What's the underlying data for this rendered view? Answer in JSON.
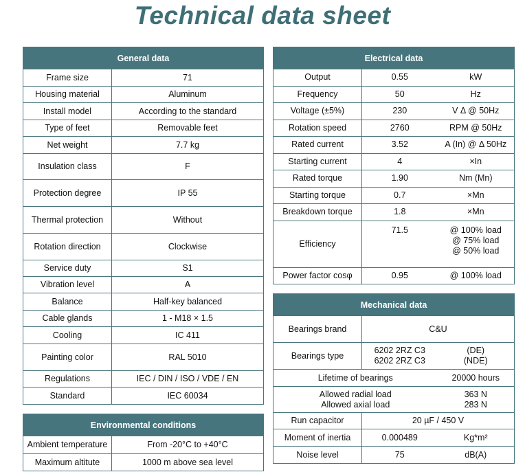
{
  "title": "Technical data sheet",
  "accent_color": "#47757e",
  "general": {
    "header": "General data",
    "rows": [
      [
        "Frame size",
        "71"
      ],
      [
        "Housing material",
        "Aluminum"
      ],
      [
        "Install model",
        "According to the standard"
      ],
      [
        "Type of feet",
        "Removable feet"
      ],
      [
        "Net weight",
        "7.7 kg"
      ],
      [
        "Insulation class",
        "F"
      ],
      [
        "Protection degree",
        "IP 55"
      ],
      [
        "Thermal protection",
        "Without"
      ],
      [
        "Rotation direction",
        "Clockwise"
      ],
      [
        "Service duty",
        "S1"
      ],
      [
        "Vibration level",
        "A"
      ],
      [
        "Balance",
        "Half-key balanced"
      ],
      [
        "Cable glands",
        "1 - M18 × 1.5"
      ],
      [
        "Cooling",
        "IC 411"
      ],
      [
        "Painting color",
        "RAL 5010"
      ],
      [
        "Regulations",
        "IEC / DIN / ISO / VDE / EN"
      ],
      [
        "Standard",
        "IEC 60034"
      ]
    ]
  },
  "environment": {
    "header": "Environmental conditions",
    "rows": [
      [
        "Ambient temperature",
        "From -20°C to +40°C"
      ],
      [
        "Maximum altitute",
        "1000 m above sea level"
      ]
    ]
  },
  "electrical": {
    "header": "Electrical data",
    "rows": [
      [
        "Output",
        "0.55",
        "kW"
      ],
      [
        "Frequency",
        "50",
        "Hz"
      ],
      [
        "Voltage (±5%)",
        "230",
        "V Δ @ 50Hz"
      ],
      [
        "Rotation speed",
        "2760",
        "RPM @ 50Hz"
      ],
      [
        "Rated current",
        "3.52",
        "A (In) @ Δ 50Hz"
      ],
      [
        "Starting current",
        "4",
        "×In"
      ],
      [
        "Rated torque",
        "1.90",
        "Nm (Mn)"
      ],
      [
        "Starting torque",
        "0.7",
        "×Mn"
      ],
      [
        "Breakdown torque",
        "1.8",
        "×Mn"
      ],
      [
        "Efficiency",
        "71.5",
        "@ 100% load\n@ 75% load\n@ 50% load"
      ],
      [
        "Power factor cosφ",
        "0.95",
        "@ 100% load"
      ]
    ]
  },
  "mechanical": {
    "header": "Mechanical data",
    "bearings_brand": [
      "Bearings brand",
      "C&U"
    ],
    "bearings_type": [
      "Bearings type",
      "6202 2RZ C3\n6202 2RZ C3",
      "(DE)\n(NDE)"
    ],
    "lifetime": [
      "Lifetime of bearings",
      "20000 hours"
    ],
    "loads": [
      "Allowed radial load\nAllowed axial load",
      "363 N\n283 N"
    ],
    "run_capacitor": [
      "Run capacitor",
      "20 µF / 450 V"
    ],
    "inertia": [
      "Moment of inertia",
      "0.000489",
      "Kg*m²"
    ],
    "noise": [
      "Noise level",
      "75",
      "dB(A)"
    ]
  }
}
